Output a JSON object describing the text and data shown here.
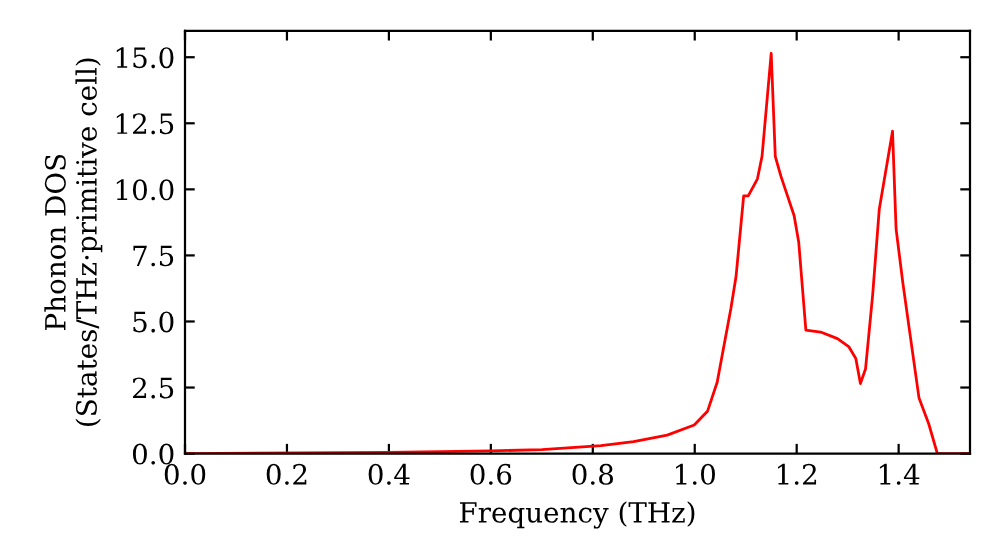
{
  "chart_data": {
    "type": "line",
    "xlabel": "Frequency (THz)",
    "ylabel": "Phonon DOS\n(States/THz·primitive cell)",
    "xlim": [
      0,
      1.54
    ],
    "ylim": [
      0,
      16
    ],
    "xticks": [
      {
        "value": 0,
        "label": "0.0"
      },
      0.2,
      0.4,
      0.6,
      0.8,
      {
        "value": 1,
        "label": "1.0"
      },
      1.2,
      1.4
    ],
    "yticks": [
      {
        "value": 0,
        "label": "0.0"
      },
      2.5,
      {
        "value": 5,
        "label": "5.0"
      },
      7.5,
      {
        "value": 10,
        "label": "10.0"
      },
      12.5,
      {
        "value": 15,
        "label": "15.0"
      }
    ],
    "grid": false,
    "legend": false,
    "marker": "none",
    "line_style": "solid",
    "series": [
      {
        "color": "#ff0000",
        "x": [
          0,
          0.4,
          0.6,
          0.7,
          0.816,
          0.88,
          0.946,
          0.999,
          1.025,
          1.044,
          1.071,
          1.081,
          1.096,
          1.105,
          1.123,
          1.132,
          1.15,
          1.158,
          1.169,
          1.195,
          1.204,
          1.218,
          1.247,
          1.28,
          1.302,
          1.316,
          1.325,
          1.335,
          1.349,
          1.362,
          1.388,
          1.395,
          1.408,
          1.421,
          1.44,
          1.459,
          1.476,
          1.54
        ],
        "values": [
          0,
          0.05,
          0.1,
          0.15,
          0.3,
          0.45,
          0.7,
          1.08,
          1.6,
          2.7,
          5.5,
          6.7,
          9.75,
          9.75,
          10.4,
          11.25,
          15.15,
          11.25,
          10.5,
          9.0,
          8.0,
          4.67,
          4.6,
          4.35,
          4.05,
          3.6,
          2.65,
          3.2,
          6.0,
          9.25,
          12.2,
          8.5,
          6.5,
          4.7,
          2.1,
          1.13,
          0,
          0
        ]
      }
    ]
  }
}
